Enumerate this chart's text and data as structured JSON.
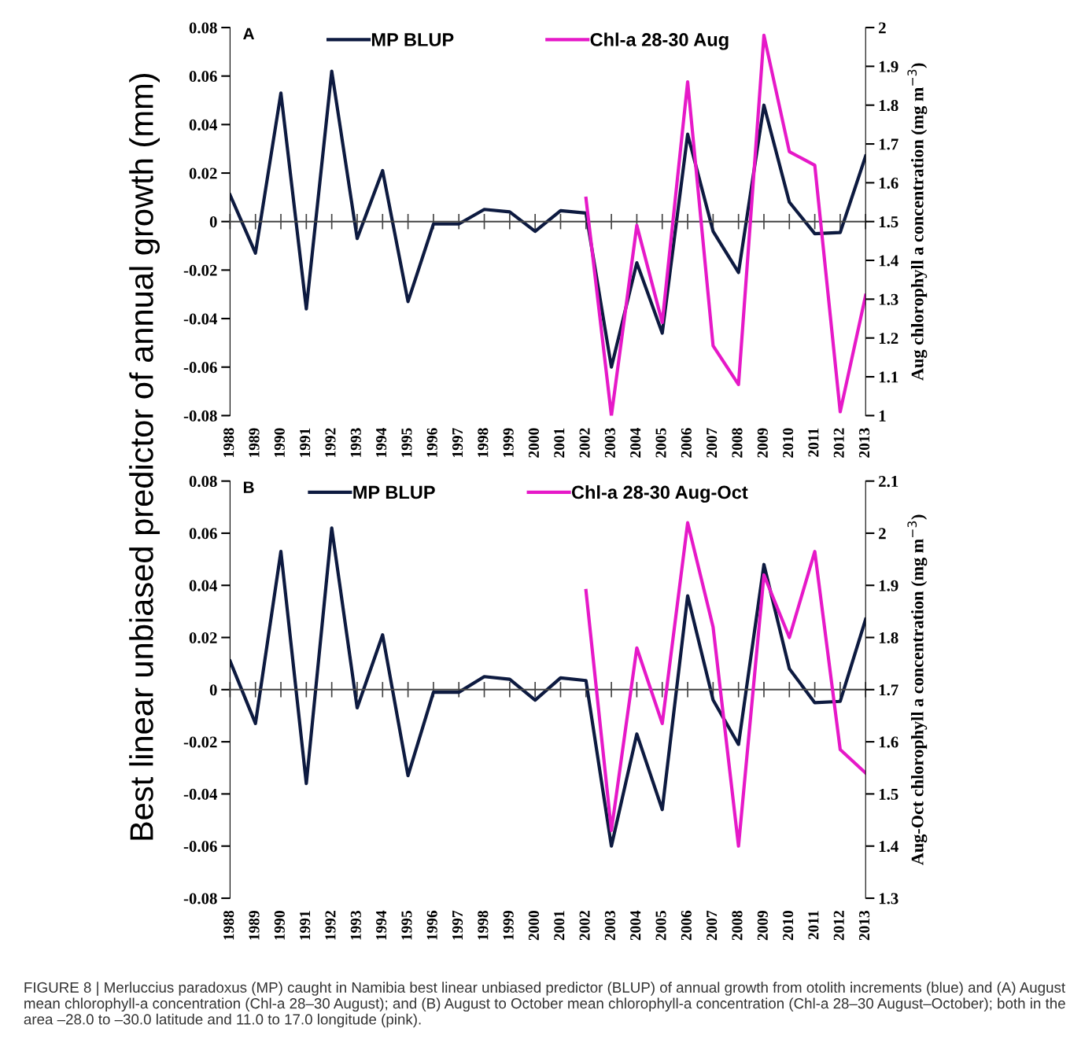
{
  "chart_data": [
    {
      "type": "line",
      "ylabel": "Best linear unbiased predictor of annual growth (mm)",
      "y2label": "Aug chlorophyll a concentration (mg m$^{−3}$)",
      "categories": [
        "1988",
        "1989",
        "1990",
        "1991",
        "1992",
        "1993",
        "1994",
        "1995",
        "1996",
        "1997",
        "1998",
        "1999",
        "2000",
        "2001",
        "2002",
        "2003",
        "2004",
        "2005",
        "2006",
        "2007",
        "2008",
        "2009",
        "2010",
        "2011",
        "2012",
        "2013"
      ],
      "series": [
        {
          "name": "MP BLUP",
          "color": "#0d1a40",
          "values": [
            0.011,
            -0.013,
            0.053,
            -0.036,
            0.062,
            -0.007,
            0.021,
            -0.033,
            -0.001,
            -0.001,
            0.005,
            0.004,
            -0.004,
            0.0045,
            0.0035,
            -0.06,
            -0.017,
            -0.046,
            0.036,
            -0.004,
            -0.021,
            0.048,
            0.008,
            -0.005,
            -0.0045,
            0.027
          ]
        },
        {
          "name": "Chl-a 28-30 Aug",
          "color": "#e619c8",
          "axis": "y2",
          "values": [
            null,
            null,
            null,
            null,
            null,
            null,
            null,
            null,
            null,
            null,
            null,
            null,
            null,
            null,
            1.56,
            1.0,
            1.49,
            1.24,
            1.86,
            1.18,
            1.08,
            1.98,
            1.68,
            1.645,
            1.01,
            1.31
          ]
        }
      ],
      "ylim": [
        -0.08,
        0.08
      ],
      "yticks": [
        -0.08,
        -0.06,
        -0.04,
        -0.02,
        0,
        0.02,
        0.04,
        0.06,
        0.08
      ],
      "y2lim": [
        1,
        2
      ],
      "y2ticks": [
        1,
        1.1,
        1.2,
        1.3,
        1.4,
        1.5,
        1.6,
        1.7,
        1.8,
        1.9,
        2
      ],
      "legend": "top",
      "annotations": [
        "A"
      ]
    },
    {
      "type": "line",
      "y2label": "Aug-Oct chlorophyll a concentration (mg m$^{−3}$)",
      "categories": [
        "1988",
        "1989",
        "1990",
        "1991",
        "1992",
        "1993",
        "1994",
        "1995",
        "1996",
        "1997",
        "1998",
        "1999",
        "2000",
        "2001",
        "2002",
        "2003",
        "2004",
        "2005",
        "2006",
        "2007",
        "2008",
        "2009",
        "2010",
        "2011",
        "2012",
        "2013"
      ],
      "series": [
        {
          "name": "MP BLUP",
          "color": "#0d1a40",
          "values": [
            0.011,
            -0.013,
            0.053,
            -0.036,
            0.062,
            -0.007,
            0.021,
            -0.033,
            -0.001,
            -0.001,
            0.005,
            0.004,
            -0.004,
            0.0045,
            0.0035,
            -0.06,
            -0.017,
            -0.046,
            0.036,
            -0.004,
            -0.021,
            0.048,
            0.008,
            -0.005,
            -0.0045,
            0.027
          ]
        },
        {
          "name": "Chl-a 28-30 Aug-Oct",
          "color": "#e619c8",
          "axis": "y2",
          "values": [
            null,
            null,
            null,
            null,
            null,
            null,
            null,
            null,
            null,
            null,
            null,
            null,
            null,
            null,
            1.89,
            1.43,
            1.78,
            1.635,
            2.02,
            1.82,
            1.4,
            1.92,
            1.8,
            1.965,
            1.585,
            1.54
          ]
        }
      ],
      "ylim": [
        -0.08,
        0.08
      ],
      "yticks": [
        -0.08,
        -0.06,
        -0.04,
        -0.02,
        0,
        0.02,
        0.04,
        0.06,
        0.08
      ],
      "y2lim": [
        1.3,
        2.1
      ],
      "y2ticks": [
        1.3,
        1.4,
        1.5,
        1.6,
        1.7,
        1.8,
        1.9,
        2,
        2.1
      ],
      "legend": "top",
      "annotations": [
        "B",
        "FIGURE 8 | Merluccius paradoxus (MP) caught in Namibia best linear unbiased predictor (BLUP) of annual growth from otolith increments (blue) and (A) August mean chlorophyll-a concentration (Chl-a 28–30 August); and (B) August to October mean chlorophyll-a concentration (Chl-a 28–30 August–October); both in the area –28.0 to –30.0 latitude and 11.0 to 17.0 longitude (pink)."
      ]
    }
  ]
}
